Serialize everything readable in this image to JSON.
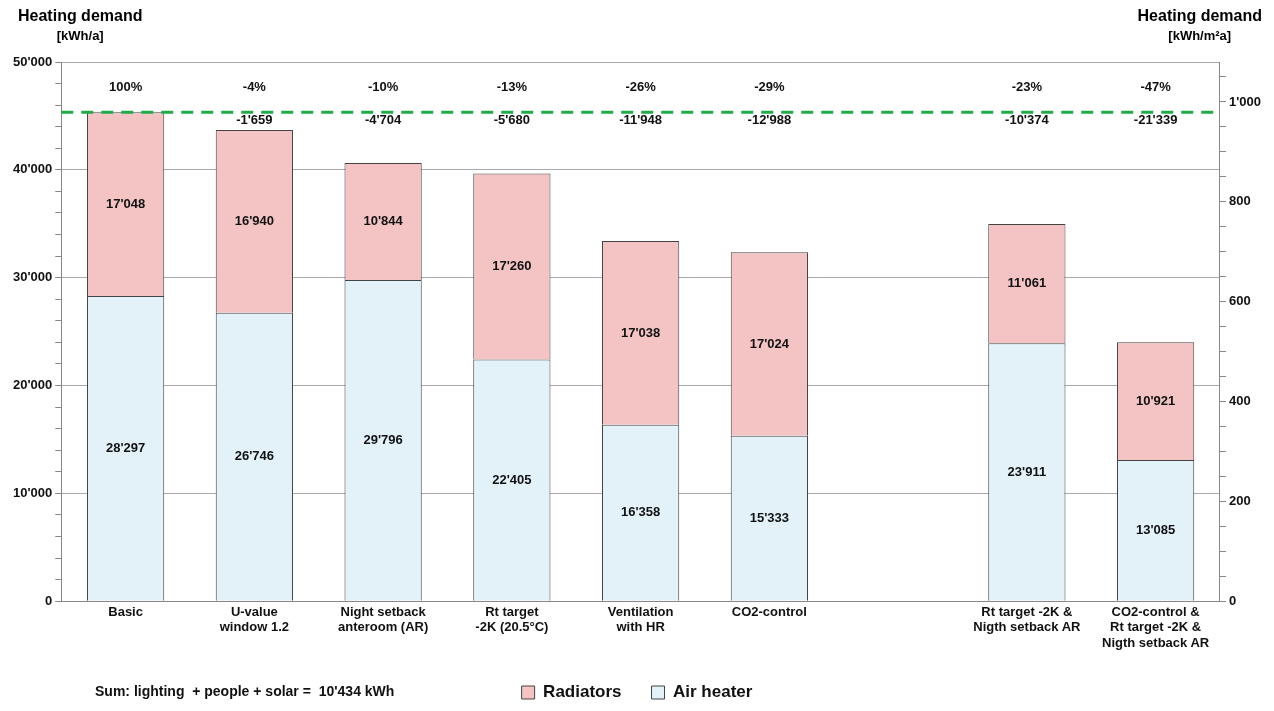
{
  "chart_data": {
    "type": "bar",
    "stacked": true,
    "ylabel": "Heating demand\n[kWh/a]",
    "y2label": "Heating demand\n[kWh/m²a]",
    "categories": [
      "Basic",
      "U-value\nwindow 1.2",
      "Night setback\nanteroom (AR)",
      "Rt target\n-2K (20.5°C)",
      "Ventilation\nwith HR",
      "CO2-control",
      null,
      "Rt target -2K &\nNigth setback AR",
      "CO2-control &\nRt target -2K &\nNigth setback AR"
    ],
    "series": [
      {
        "name": "Air heater",
        "color": "#e3f1f9",
        "values": [
          28297,
          26746,
          29796,
          22405,
          16358,
          15333,
          null,
          23911,
          13085
        ],
        "value_labels": [
          "28'297",
          "26'746",
          "29'796",
          "22'405",
          "16'358",
          "15'333",
          null,
          "23'911",
          "13'085"
        ]
      },
      {
        "name": "Radiators",
        "color": "#f4c4c4",
        "values": [
          17048,
          16940,
          10844,
          17260,
          17038,
          17024,
          null,
          11061,
          10921
        ],
        "value_labels": [
          "17'048",
          "16'940",
          "10'844",
          "17'260",
          "17'038",
          "17'024",
          null,
          "11'061",
          "10'921"
        ]
      }
    ],
    "ylim": [
      0,
      50000
    ],
    "yticks": [
      {
        "value": 0,
        "label": "0"
      },
      {
        "value": 2000,
        "label": null
      },
      {
        "value": 4000,
        "label": null
      },
      {
        "value": 6000,
        "label": null
      },
      {
        "value": 8000,
        "label": null
      },
      {
        "value": 10000,
        "label": "10'000"
      },
      {
        "value": 12000,
        "label": null
      },
      {
        "value": 14000,
        "label": null
      },
      {
        "value": 16000,
        "label": null
      },
      {
        "value": 18000,
        "label": null
      },
      {
        "value": 20000,
        "label": "20'000"
      },
      {
        "value": 22000,
        "label": null
      },
      {
        "value": 24000,
        "label": null
      },
      {
        "value": 26000,
        "label": null
      },
      {
        "value": 28000,
        "label": null
      },
      {
        "value": 30000,
        "label": "30'000"
      },
      {
        "value": 32000,
        "label": null
      },
      {
        "value": 34000,
        "label": null
      },
      {
        "value": 36000,
        "label": null
      },
      {
        "value": 38000,
        "label": null
      },
      {
        "value": 40000,
        "label": "40'000"
      },
      {
        "value": 42000,
        "label": null
      },
      {
        "value": 44000,
        "label": null
      },
      {
        "value": 46000,
        "label": null
      },
      {
        "value": 48000,
        "label": null
      },
      {
        "value": 50000,
        "label": "50'000"
      }
    ],
    "y2lim": [
      0,
      1080
    ],
    "y2ticks": [
      0,
      {
        "value": 50,
        "label": null
      },
      {
        "value": 100,
        "label": null
      },
      {
        "value": 150,
        "label": null
      },
      200,
      {
        "value": 250,
        "label": null
      },
      {
        "value": 300,
        "label": null
      },
      {
        "value": 350,
        "label": null
      },
      400,
      {
        "value": 450,
        "label": null
      },
      {
        "value": 500,
        "label": null
      },
      {
        "value": 550,
        "label": null
      },
      600,
      {
        "value": 650,
        "label": null
      },
      {
        "value": 700,
        "label": null
      },
      {
        "value": 750,
        "label": null
      },
      800,
      {
        "value": 850,
        "label": null
      },
      {
        "value": 900,
        "label": null
      },
      {
        "value": 950,
        "label": null
      },
      {
        "value": 1000,
        "label": "1'000"
      },
      {
        "value": 1050,
        "label": null
      }
    ],
    "ref_lines": [
      {
        "axis": "y",
        "value": 45345,
        "color": "#22aa4a",
        "line_style": "dashed"
      }
    ],
    "annotations": [
      "100%",
      "-4%",
      "-1'659",
      "-10%",
      "-4'704",
      "-13%",
      "-5'680",
      "-26%",
      "-11'948",
      "-29%",
      "-12'988",
      "-23%",
      "-10'374",
      "-47%",
      "-21'339",
      "Sum: lighting  + people + solar =  10'434 kWh"
    ],
    "grid": "y",
    "legend": "bottom"
  }
}
